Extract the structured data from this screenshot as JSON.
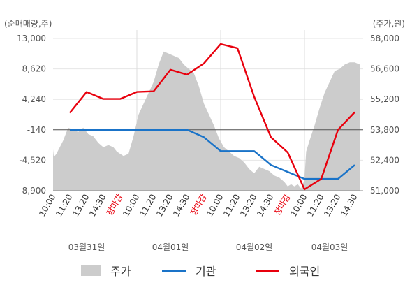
{
  "chart_data": {
    "type": "line",
    "left_unit": "(순매매량,주)",
    "right_unit": "(주가,원)",
    "left_ticks": [
      "13,000",
      "8,620",
      "4,240",
      "-140",
      "-4,520",
      "-8,900"
    ],
    "right_ticks": [
      "58,000",
      "56,600",
      "55,200",
      "53,800",
      "52,400",
      "51,000"
    ],
    "left_ylim": [
      -8900,
      13000
    ],
    "right_ylim": [
      51000,
      58000
    ],
    "x_labels": [
      "10:00",
      "11:20",
      "13:20",
      "14:30",
      "장마감",
      "10:00",
      "11:20",
      "13:20",
      "14:30",
      "장마감",
      "10:00",
      "11:20",
      "13:20",
      "14:30",
      "장마감",
      "10:00",
      "11:20",
      "13:20",
      "14:30"
    ],
    "x_label_colors": [
      "#333333",
      "#333333",
      "#333333",
      "#333333",
      "#e8000d",
      "#333333",
      "#333333",
      "#333333",
      "#333333",
      "#e8000d",
      "#333333",
      "#333333",
      "#333333",
      "#333333",
      "#e8000d",
      "#333333",
      "#333333",
      "#333333",
      "#333333"
    ],
    "date_labels": [
      "03월31일",
      "04월01일",
      "04월02일",
      "04월03일"
    ],
    "series": [
      {
        "name": "주가",
        "color": "#cccccc",
        "kind": "area",
        "x": [
          0,
          0.05,
          0.1,
          0.2,
          0.4,
          0.6,
          0.9,
          1.2,
          1.5,
          1.8,
          2.1,
          2.4,
          2.7,
          3.0,
          3.3,
          3.6,
          3.8,
          4.0,
          4.2,
          4.5,
          4.8,
          5.1,
          5.4,
          5.7,
          6.0,
          6.3,
          6.6,
          6.9,
          7.2,
          7.5,
          7.8,
          8.1,
          8.4,
          8.7,
          9.0,
          9.3,
          9.6,
          9.9,
          10.2,
          10.5,
          10.8,
          11.1,
          11.4,
          11.7,
          12.0,
          12.3,
          12.6,
          12.9,
          13.2,
          13.5,
          13.8,
          14.0,
          14.2,
          14.4,
          14.6,
          14.8,
          15.0,
          15.05,
          15.1,
          15.3,
          15.6,
          15.9,
          16.2,
          16.5,
          16.8,
          17.1,
          17.4,
          17.7,
          18.0,
          18.3
        ],
        "values": [
          52900,
          52500,
          52600,
          52700,
          53000,
          53300,
          53900,
          53800,
          53700,
          53900,
          53600,
          53500,
          53200,
          53000,
          53100,
          53000,
          52800,
          52700,
          52600,
          52700,
          53500,
          54500,
          55000,
          55500,
          56000,
          56800,
          57400,
          57300,
          57200,
          57100,
          56800,
          56600,
          56400,
          55800,
          55000,
          54500,
          54000,
          53400,
          53000,
          52800,
          52600,
          52500,
          52300,
          52000,
          51800,
          52100,
          52000,
          51900,
          51700,
          51600,
          51400,
          51200,
          51300,
          51200,
          51300,
          51100,
          51500,
          52200,
          52800,
          53300,
          54000,
          54800,
          55500,
          56000,
          56500,
          56600,
          56800,
          56900,
          56900,
          56800
        ]
      },
      {
        "name": "기관",
        "color": "#1a73c8",
        "kind": "line",
        "x": [
          1,
          2,
          3,
          4,
          5,
          6,
          7,
          8,
          9,
          10,
          11,
          12,
          13,
          14,
          15,
          16,
          17,
          18
        ],
        "values": [
          -140,
          -140,
          -140,
          -140,
          -140,
          -140,
          -140,
          -140,
          -1200,
          -3200,
          -3200,
          -3200,
          -5200,
          -6200,
          -7200,
          -7200,
          -7200,
          -5200
        ]
      },
      {
        "name": "외국인",
        "color": "#e8000d",
        "kind": "line",
        "x": [
          1,
          2,
          3,
          4,
          5,
          6,
          7,
          8,
          9,
          10,
          11,
          12,
          13,
          14,
          15,
          16,
          17,
          18
        ],
        "values": [
          2300,
          5300,
          4300,
          4300,
          5300,
          5400,
          8500,
          7800,
          9400,
          12200,
          11600,
          4600,
          -1200,
          -3400,
          -8700,
          -7200,
          -140,
          2400
        ]
      }
    ],
    "xlim": [
      0,
      18.5
    ],
    "grid": true,
    "legend_position": "bottom"
  },
  "legend": [
    {
      "label": "주가",
      "color": "#cccccc",
      "kind": "area"
    },
    {
      "label": "기관",
      "color": "#1a73c8",
      "kind": "line"
    },
    {
      "label": "외국인",
      "color": "#e8000d",
      "kind": "line"
    }
  ]
}
